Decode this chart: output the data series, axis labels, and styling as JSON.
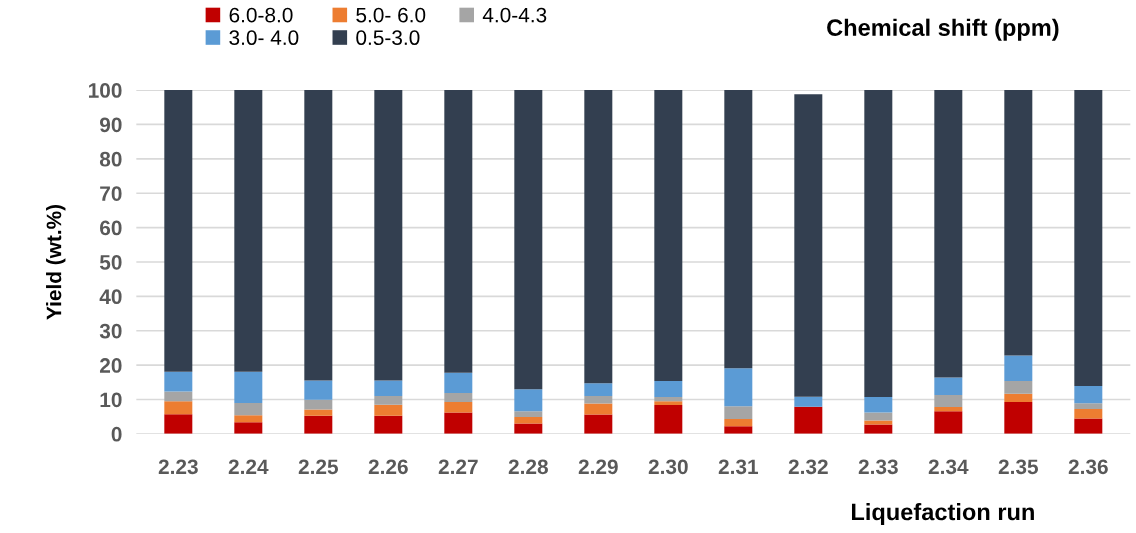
{
  "chart_data": {
    "type": "bar",
    "stacked": true,
    "xlabel": "Liquefaction run",
    "ylabel": "Yield (wt.%)",
    "legend_title": "Chemical shift (ppm)",
    "categories": [
      "2.23",
      "2.24",
      "2.25",
      "2.26",
      "2.27",
      "2.28",
      "2.29",
      "2.30",
      "2.31",
      "2.32",
      "2.33",
      "2.34",
      "2.35",
      "2.36"
    ],
    "series": [
      {
        "name": "6.0-8.0",
        "color": "#c00000",
        "values": [
          5.7,
          3.4,
          5.3,
          5.3,
          6.2,
          3.0,
          5.6,
          8.4,
          2.2,
          7.9,
          2.7,
          6.6,
          9.3,
          4.5
        ]
      },
      {
        "name": "5.0- 6.0",
        "color": "#ed7d31",
        "values": [
          3.8,
          2.0,
          1.8,
          3.2,
          3.1,
          1.9,
          3.2,
          1.1,
          2.1,
          0,
          1.2,
          1.2,
          2.4,
          2.7
        ]
      },
      {
        "name": "4.0-4.3",
        "color": "#a5a5a5",
        "values": [
          2.8,
          3.6,
          2.8,
          2.5,
          2.6,
          1.7,
          2.2,
          1.2,
          3.7,
          0,
          2.3,
          3.5,
          3.7,
          1.7
        ]
      },
      {
        "name": "3.0- 4.0",
        "color": "#5b9bd5",
        "values": [
          5.8,
          9.1,
          5.6,
          4.5,
          5.9,
          6.4,
          3.7,
          4.7,
          11.1,
          2.9,
          4.5,
          5.1,
          7.4,
          5.0
        ]
      },
      {
        "name": "0.5-3.0",
        "color": "#333f50",
        "values": [
          81.9,
          81.9,
          84.5,
          84.5,
          82.2,
          87.0,
          85.3,
          84.6,
          80.9,
          88.0,
          89.3,
          83.6,
          77.2,
          86.1
        ]
      }
    ],
    "ylim": [
      0,
      100
    ],
    "yticks": [
      0,
      10,
      20,
      30,
      40,
      50,
      60,
      70,
      80,
      90,
      100
    ],
    "grid": "y",
    "legend": "top left"
  }
}
